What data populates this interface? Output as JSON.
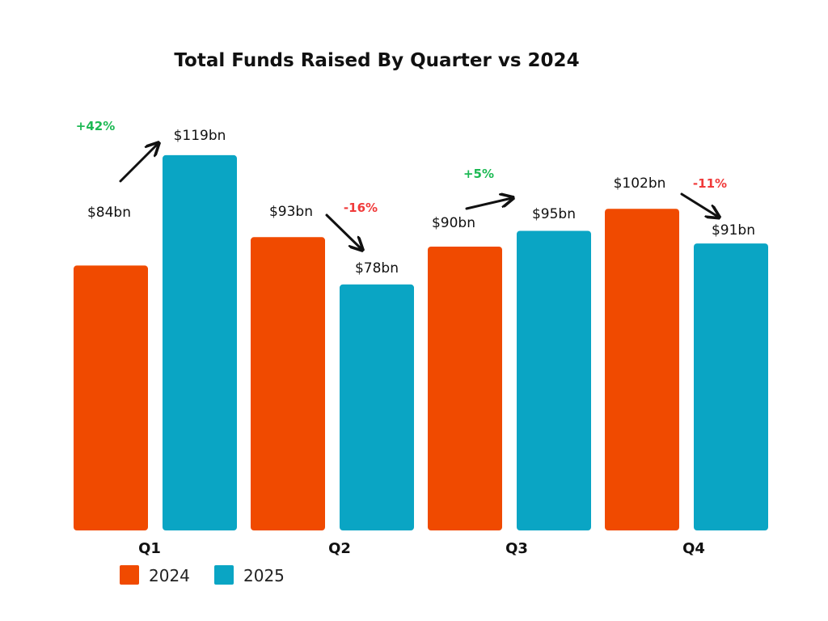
{
  "chart_data": {
    "type": "bar",
    "title": "Total Funds Raised By Quarter vs 2024",
    "xlabel": "",
    "ylabel": "",
    "ylim": [
      0,
      125
    ],
    "grid": false,
    "legend": "bottom-left",
    "categories": [
      "Q1",
      "Q2",
      "Q3",
      "Q4"
    ],
    "series": [
      {
        "name": "2024",
        "color": "#F04A00",
        "values": [
          84,
          93,
          90,
          102
        ],
        "labels": [
          "$84bn",
          "$93bn",
          "$90bn",
          "$102bn"
        ]
      },
      {
        "name": "2025",
        "color": "#0AA5C4",
        "values": [
          119,
          78,
          95,
          91
        ],
        "labels": [
          "$119bn",
          "$78bn",
          "$95bn",
          "$91bn"
        ]
      }
    ],
    "annotations": [
      {
        "category": "Q1",
        "text": "+42%",
        "direction": "up",
        "color": "#1DB954"
      },
      {
        "category": "Q2",
        "text": "-16%",
        "direction": "down",
        "color": "#F03A3A"
      },
      {
        "category": "Q3",
        "text": "+5%",
        "direction": "up",
        "color": "#1DB954"
      },
      {
        "category": "Q4",
        "text": "-11%",
        "direction": "down",
        "color": "#F03A3A"
      }
    ]
  }
}
